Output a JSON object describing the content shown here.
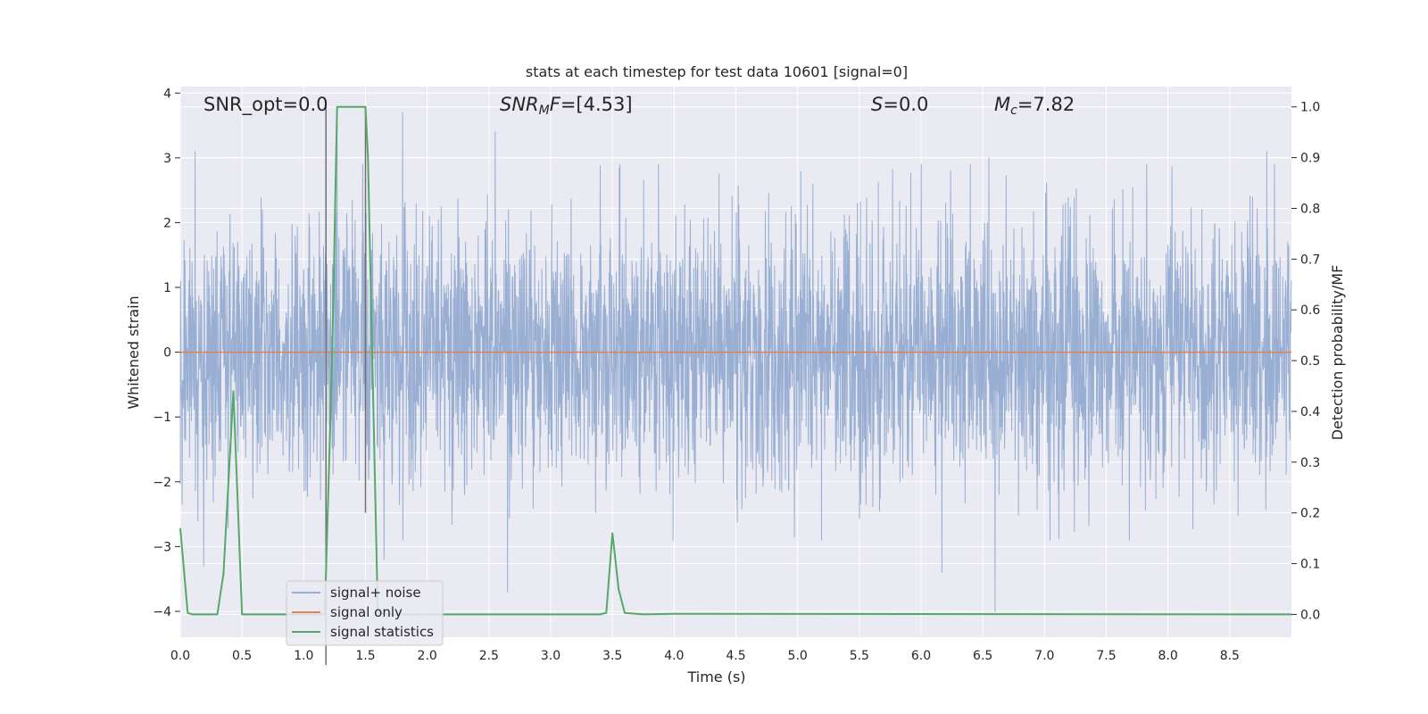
{
  "chart_data": {
    "type": "line",
    "title": "stats at each timestep for test data 10601 [signal=0]",
    "xlabel": "Time (s)",
    "ylabel": "Whitened strain",
    "y2label": "Detection probability/MF",
    "xlim": [
      0.0,
      9.0
    ],
    "ylim": [
      -4.4,
      4.1
    ],
    "y2lim": [
      -0.045,
      1.04
    ],
    "xticks": [
      "0.0",
      "0.5",
      "1.0",
      "1.5",
      "2.0",
      "2.5",
      "3.0",
      "3.5",
      "4.0",
      "4.5",
      "5.0",
      "5.5",
      "6.0",
      "6.5",
      "7.0",
      "7.5",
      "8.0",
      "8.5"
    ],
    "yticks": [
      "−4",
      "−3",
      "−2",
      "−1",
      "0",
      "1",
      "2",
      "3",
      "4"
    ],
    "y2ticks": [
      "0.0",
      "0.1",
      "0.2",
      "0.3",
      "0.4",
      "0.5",
      "0.6",
      "0.7",
      "0.8",
      "0.9",
      "1.0"
    ],
    "grid": true,
    "legend_position": "lower-left",
    "colors": {
      "background": "#eaeaf2",
      "grid": "#ffffff",
      "noise": "#98aed2",
      "signal": "#dd8452",
      "stats": "#55a868",
      "marker_lines": "#707070"
    },
    "annotations": {
      "snr_opt": "SNR_opt=0.0",
      "snr_mf_prefix": "SNR",
      "snr_mf_sub": "M",
      "snr_mf_suffix": "F=[4.53]",
      "s_prefix": "S",
      "s_suffix": "=0.0",
      "mc_prefix": "M",
      "mc_sub": "c",
      "mc_suffix": "=7.82"
    },
    "series": [
      {
        "name": "signal+ noise",
        "axis": "left",
        "style": "dense-noise",
        "x_range": [
          0.0,
          9.0
        ],
        "core_band": [
          -1.7,
          1.4
        ],
        "typical_peak": [
          -2.6,
          2.4
        ],
        "spikes": [
          {
            "x": 1.8,
            "y": 3.7
          },
          {
            "x": 1.27,
            "y": 3.5
          },
          {
            "x": 2.55,
            "y": 3.4
          },
          {
            "x": 6.55,
            "y": 3.0
          },
          {
            "x": 8.8,
            "y": 3.1
          },
          {
            "x": 0.12,
            "y": 3.1
          },
          {
            "x": 2.65,
            "y": -3.7
          },
          {
            "x": 6.6,
            "y": -4.0
          },
          {
            "x": 6.17,
            "y": -3.4
          },
          {
            "x": 0.19,
            "y": -3.3
          },
          {
            "x": 1.65,
            "y": -3.2
          }
        ]
      },
      {
        "name": "signal only",
        "axis": "left",
        "x": [
          0.0,
          9.0
        ],
        "y": [
          0.0,
          0.0
        ]
      },
      {
        "name": "signal statistics",
        "axis": "right",
        "x": [
          0.0,
          0.06,
          0.1,
          0.3,
          0.35,
          0.43,
          0.5,
          0.55,
          1.1,
          1.17,
          1.23,
          1.27,
          1.5,
          1.52,
          1.6,
          1.7,
          3.4,
          3.45,
          3.5,
          3.55,
          3.6,
          3.75,
          4.0,
          9.0
        ],
        "y": [
          0.17,
          0.003,
          0.0,
          0.0,
          0.08,
          0.44,
          0.0,
          0.0,
          0.0,
          0.0,
          0.5,
          1.0,
          1.0,
          0.9,
          0.003,
          0.0,
          0.0,
          0.003,
          0.16,
          0.05,
          0.003,
          0.0,
          0.001,
          0.0
        ]
      }
    ],
    "marker_lines": [
      {
        "x": 1.18,
        "y_range": [
          -0.1,
          1.0
        ]
      },
      {
        "x": 1.5,
        "y_range": [
          0.2,
          1.0
        ]
      }
    ]
  }
}
